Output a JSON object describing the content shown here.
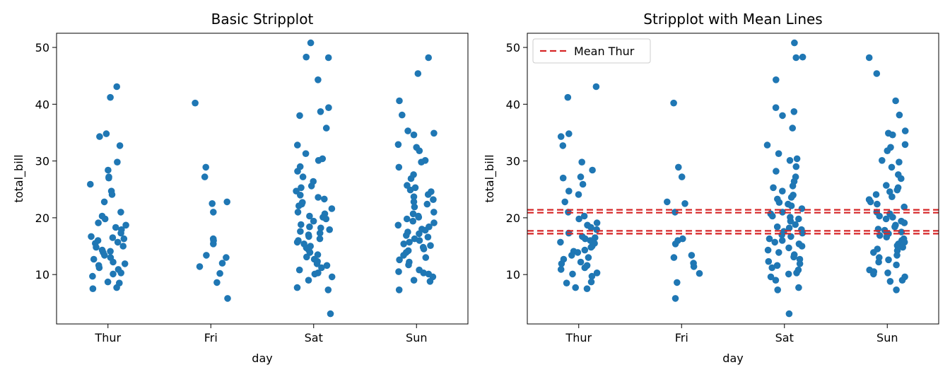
{
  "chart_data": [
    {
      "type": "scatter",
      "title": "Basic Stripplot",
      "xlabel": "day",
      "ylabel": "total_bill",
      "categories": [
        "Thur",
        "Fri",
        "Sat",
        "Sun"
      ],
      "yticks": [
        10,
        20,
        30,
        40,
        50
      ],
      "ylim": [
        1.3,
        52.5
      ],
      "point_color": "#1f77b4",
      "series": [
        {
          "category": "Thur",
          "values": [
            43.1,
            41.2,
            34.8,
            34.3,
            32.7,
            29.8,
            28.4,
            27.2,
            27.0,
            25.9,
            24.7,
            24.1,
            22.8,
            21.0,
            20.3,
            19.8,
            19.1,
            18.7,
            18.3,
            17.9,
            17.3,
            16.7,
            16.5,
            16.3,
            16.0,
            15.7,
            15.5,
            15.0,
            14.8,
            14.3,
            14.1,
            13.9,
            13.4,
            13.0,
            12.7,
            12.2,
            11.9,
            11.6,
            11.2,
            10.9,
            10.3,
            10.1,
            9.7,
            8.7,
            8.5,
            7.7,
            7.5
          ]
        },
        {
          "category": "Fri",
          "values": [
            40.2,
            28.9,
            27.2,
            22.8,
            22.5,
            21.0,
            16.3,
            16.0,
            15.4,
            13.4,
            13.0,
            12.0,
            11.4,
            10.2,
            8.6,
            5.8
          ]
        },
        {
          "category": "Sat",
          "values": [
            50.8,
            48.3,
            48.2,
            44.3,
            39.4,
            38.7,
            38.0,
            35.8,
            32.8,
            31.3,
            30.4,
            30.1,
            29.0,
            28.2,
            27.2,
            26.4,
            25.6,
            25.3,
            24.7,
            24.0,
            23.6,
            23.3,
            22.7,
            22.4,
            22.1,
            21.6,
            21.0,
            20.7,
            20.3,
            20.1,
            19.8,
            19.4,
            18.8,
            18.4,
            18.2,
            17.9,
            17.6,
            17.3,
            17.0,
            16.7,
            16.3,
            16.0,
            15.7,
            15.4,
            15.0,
            14.7,
            14.3,
            13.9,
            13.5,
            13.1,
            12.7,
            12.3,
            11.9,
            11.6,
            11.2,
            10.8,
            10.3,
            10.1,
            9.6,
            9.0,
            7.7,
            7.3,
            3.1
          ]
        },
        {
          "category": "Sun",
          "values": [
            48.2,
            45.4,
            40.6,
            38.1,
            35.3,
            34.9,
            34.6,
            32.9,
            32.4,
            31.8,
            30.1,
            29.8,
            28.9,
            27.6,
            26.9,
            25.7,
            25.3,
            24.9,
            24.6,
            24.1,
            23.7,
            23.2,
            22.8,
            22.4,
            21.9,
            21.0,
            20.7,
            20.3,
            20.1,
            19.8,
            19.4,
            19.1,
            18.7,
            18.4,
            18.0,
            17.8,
            17.5,
            17.2,
            16.9,
            16.6,
            16.3,
            16.0,
            15.7,
            15.4,
            15.1,
            14.8,
            14.5,
            14.2,
            13.9,
            13.4,
            13.0,
            12.6,
            12.2,
            11.7,
            10.8,
            10.5,
            10.3,
            10.1,
            9.6,
            9.0,
            8.8,
            7.3
          ]
        }
      ]
    },
    {
      "type": "scatter",
      "title": "Stripplot with Mean Lines",
      "xlabel": "day",
      "ylabel": "total_bill",
      "categories": [
        "Thur",
        "Fri",
        "Sat",
        "Sun"
      ],
      "yticks": [
        10,
        20,
        30,
        40,
        50
      ],
      "ylim": [
        1.3,
        52.5
      ],
      "point_color": "#1f77b4",
      "legend": {
        "label": "Mean Thur",
        "position": "top-left"
      },
      "mean_lines": [
        {
          "y": 17.7,
          "color": "#d62728",
          "style": "dashed"
        },
        {
          "y": 17.2,
          "color": "#d62728",
          "style": "dashed"
        },
        {
          "y": 20.9,
          "color": "#d62728",
          "style": "dashed"
        },
        {
          "y": 21.4,
          "color": "#d62728",
          "style": "dashed"
        }
      ],
      "series": [
        {
          "category": "Thur",
          "values": [
            43.1,
            41.2,
            34.8,
            34.3,
            32.7,
            29.8,
            28.4,
            27.2,
            27.0,
            25.9,
            24.7,
            24.1,
            22.8,
            21.0,
            20.3,
            19.8,
            19.1,
            18.7,
            18.3,
            17.9,
            17.3,
            16.7,
            16.5,
            16.3,
            16.0,
            15.7,
            15.5,
            15.0,
            14.8,
            14.3,
            14.1,
            13.9,
            13.4,
            13.0,
            12.7,
            12.2,
            11.9,
            11.6,
            11.2,
            10.9,
            10.3,
            10.1,
            9.7,
            8.7,
            8.5,
            7.7,
            7.5
          ]
        },
        {
          "category": "Fri",
          "values": [
            40.2,
            28.9,
            27.2,
            22.8,
            22.5,
            21.0,
            16.3,
            16.0,
            15.4,
            13.4,
            13.0,
            12.0,
            11.4,
            10.2,
            8.6,
            5.8
          ]
        },
        {
          "category": "Sat",
          "values": [
            50.8,
            48.3,
            48.2,
            44.3,
            39.4,
            38.7,
            38.0,
            35.8,
            32.8,
            31.3,
            30.4,
            30.1,
            29.0,
            28.2,
            27.2,
            26.4,
            25.6,
            25.3,
            24.7,
            24.0,
            23.6,
            23.3,
            22.7,
            22.4,
            22.1,
            21.6,
            21.0,
            20.7,
            20.3,
            20.1,
            19.8,
            19.4,
            18.8,
            18.4,
            18.2,
            17.9,
            17.6,
            17.3,
            17.0,
            16.7,
            16.3,
            16.0,
            15.7,
            15.4,
            15.0,
            14.7,
            14.3,
            13.9,
            13.5,
            13.1,
            12.7,
            12.3,
            11.9,
            11.6,
            11.2,
            10.8,
            10.3,
            10.1,
            9.6,
            9.0,
            7.7,
            7.3,
            3.1
          ]
        },
        {
          "category": "Sun",
          "values": [
            48.2,
            45.4,
            40.6,
            38.1,
            35.3,
            34.9,
            34.6,
            32.9,
            32.4,
            31.8,
            30.1,
            29.8,
            28.9,
            27.6,
            26.9,
            25.7,
            25.3,
            24.9,
            24.6,
            24.1,
            23.7,
            23.2,
            22.8,
            22.4,
            21.9,
            21.0,
            20.7,
            20.3,
            20.1,
            19.8,
            19.4,
            19.1,
            18.7,
            18.4,
            18.0,
            17.8,
            17.5,
            17.2,
            16.9,
            16.6,
            16.3,
            16.0,
            15.7,
            15.4,
            15.1,
            14.8,
            14.5,
            14.2,
            13.9,
            13.4,
            13.0,
            12.6,
            12.2,
            11.7,
            10.8,
            10.5,
            10.3,
            10.1,
            9.6,
            9.0,
            8.8,
            7.3
          ]
        }
      ]
    }
  ]
}
